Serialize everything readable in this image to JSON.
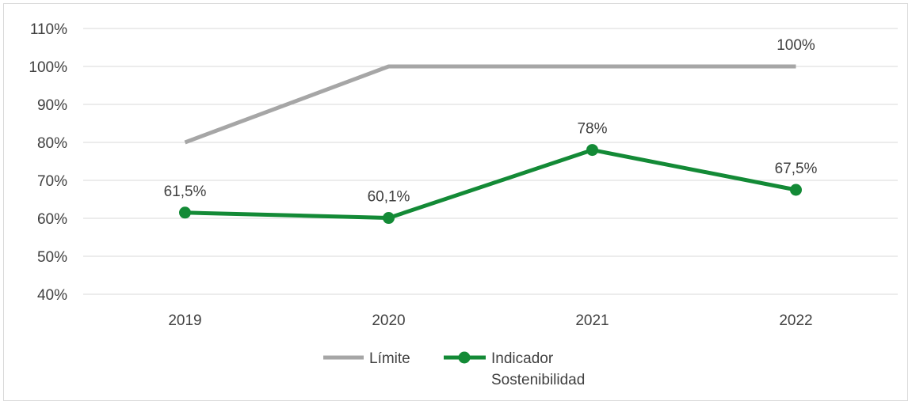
{
  "chart_data": {
    "type": "line",
    "categories": [
      "2019",
      "2020",
      "2021",
      "2022"
    ],
    "ylim": [
      0.4,
      1.1
    ],
    "yticks": [
      "40%",
      "50%",
      "60%",
      "70%",
      "80%",
      "90%",
      "100%",
      "110%"
    ],
    "grid": true,
    "legend_position": "bottom",
    "series": [
      {
        "name": "Límite",
        "values": [
          0.8,
          1.0,
          1.0,
          1.0
        ],
        "color": "#a6a6a6",
        "markers": false,
        "labels": [
          "",
          "",
          "",
          "100%"
        ]
      },
      {
        "name": "Indicador Sostenibilidad",
        "name_lines": [
          "Indicador",
          "Sostenibilidad"
        ],
        "values": [
          0.615,
          0.601,
          0.78,
          0.675
        ],
        "color": "#138a36",
        "markers": true,
        "labels": [
          "61,5%",
          "60,1%",
          "78%",
          "67,5%"
        ]
      }
    ]
  }
}
